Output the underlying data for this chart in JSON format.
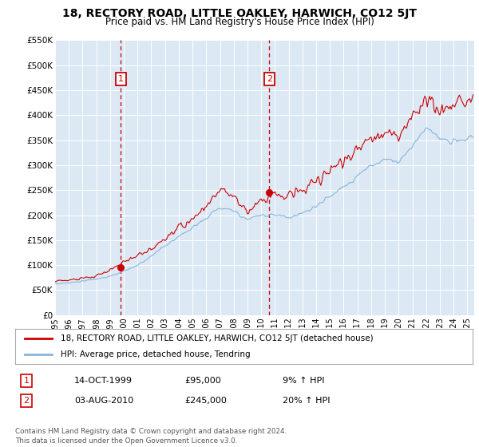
{
  "title": "18, RECTORY ROAD, LITTLE OAKLEY, HARWICH, CO12 5JT",
  "subtitle": "Price paid vs. HM Land Registry's House Price Index (HPI)",
  "background_color": "#ffffff",
  "plot_bg_color": "#dce9f5",
  "grid_color": "#ffffff",
  "ylim": [
    0,
    550000
  ],
  "xlim_start": 1995.0,
  "xlim_end": 2025.5,
  "yticks": [
    0,
    50000,
    100000,
    150000,
    200000,
    250000,
    300000,
    350000,
    400000,
    450000,
    500000,
    550000
  ],
  "ytick_labels": [
    "£0",
    "£50K",
    "£100K",
    "£150K",
    "£200K",
    "£250K",
    "£300K",
    "£350K",
    "£400K",
    "£450K",
    "£500K",
    "£550K"
  ],
  "xticks": [
    1995,
    1996,
    1997,
    1998,
    1999,
    2000,
    2001,
    2002,
    2003,
    2004,
    2005,
    2006,
    2007,
    2008,
    2009,
    2010,
    2011,
    2012,
    2013,
    2014,
    2015,
    2016,
    2017,
    2018,
    2019,
    2020,
    2021,
    2022,
    2023,
    2024,
    2025
  ],
  "purchase1_x": 1999.79,
  "purchase1_y": 95000,
  "purchase1_label": "1",
  "purchase2_x": 2010.59,
  "purchase2_y": 245000,
  "purchase2_label": "2",
  "line_red_color": "#cc0000",
  "line_blue_color": "#89b4d9",
  "marker_box_color": "#cc0000",
  "vline_color": "#cc0000",
  "legend1_text": "18, RECTORY ROAD, LITTLE OAKLEY, HARWICH, CO12 5JT (detached house)",
  "legend2_text": "HPI: Average price, detached house, Tendring",
  "table_row1": [
    "1",
    "14-OCT-1999",
    "£95,000",
    "9% ↑ HPI"
  ],
  "table_row2": [
    "2",
    "03-AUG-2010",
    "£245,000",
    "20% ↑ HPI"
  ],
  "footer": "Contains HM Land Registry data © Crown copyright and database right 2024.\nThis data is licensed under the Open Government Licence v3.0."
}
